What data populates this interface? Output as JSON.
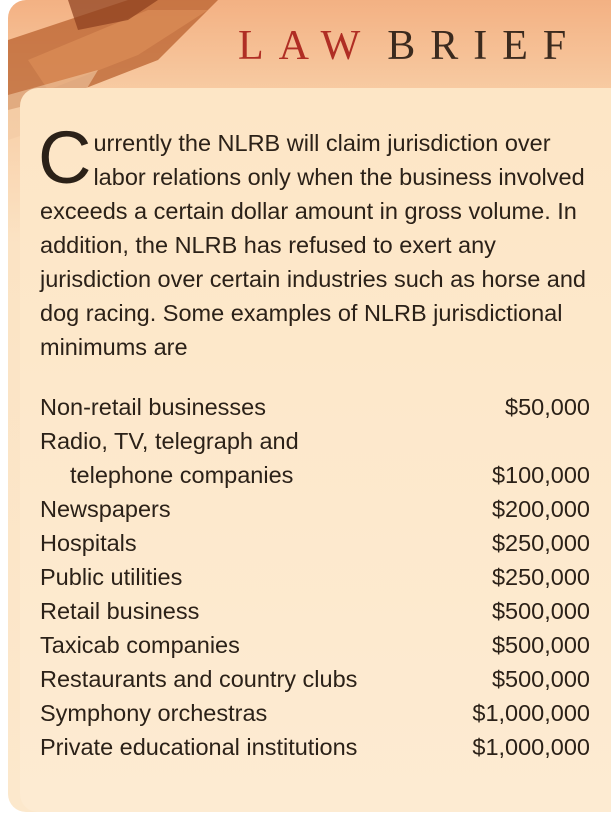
{
  "header": {
    "title_part1": "LAW",
    "title_part2": "BRIEF"
  },
  "body": {
    "dropcap": "C",
    "text": "urrently the NLRB will claim jurisdiction over labor relations only when the business involved exceeds a certain dollar amount in gross volume. In addition, the NLRB has refused to exert any jurisdiction over certain industries such as horse and dog racing. Some examples of NLRB jurisdictional minimums are"
  },
  "table": {
    "rows": [
      {
        "label": [
          "Non-retail businesses"
        ],
        "amount": "$50,000"
      },
      {
        "label": [
          "Radio, TV, telegraph and",
          "telephone companies"
        ],
        "amount": "$100,000"
      },
      {
        "label": [
          "Newspapers"
        ],
        "amount": "$200,000"
      },
      {
        "label": [
          "Hospitals"
        ],
        "amount": "$250,000"
      },
      {
        "label": [
          "Public utilities"
        ],
        "amount": "$250,000"
      },
      {
        "label": [
          "Retail business"
        ],
        "amount": "$500,000"
      },
      {
        "label": [
          "Taxicab companies"
        ],
        "amount": "$500,000"
      },
      {
        "label": [
          "Restaurants and country clubs"
        ],
        "amount": "$500,000"
      },
      {
        "label": [
          "Symphony orchestras"
        ],
        "amount": "$1,000,000"
      },
      {
        "label": [
          "Private educational institutions"
        ],
        "amount": "$1,000,000"
      }
    ]
  }
}
